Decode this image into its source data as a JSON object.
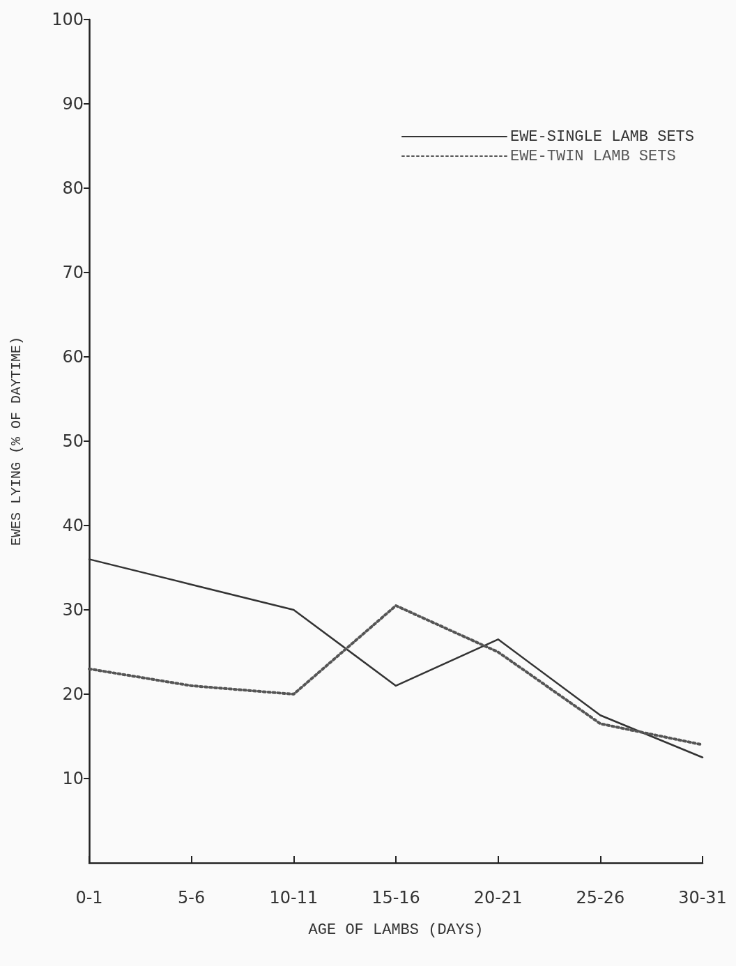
{
  "chart_data": {
    "type": "line",
    "xlabel": "AGE OF LAMBS (DAYS)",
    "ylabel": "EWES LYING (% OF DAYTIME)",
    "categories": [
      "0-1",
      "5-6",
      "10-11",
      "15-16",
      "20-21",
      "25-26",
      "30-31"
    ],
    "series": [
      {
        "name": "EWE-SINGLE LAMB SETS",
        "color": "#333333",
        "line_style": "solid",
        "values": [
          36,
          33,
          30,
          21,
          26.5,
          17.5,
          12.5
        ]
      },
      {
        "name": "EWE-TWIN LAMB SETS",
        "color": "#555555",
        "line_style": "dotted",
        "values": [
          23,
          21,
          20,
          30.5,
          25,
          16.5,
          14
        ]
      }
    ],
    "ylim": [
      0,
      100
    ],
    "yticks": [
      10,
      20,
      30,
      40,
      50,
      60,
      70,
      80,
      90,
      100
    ],
    "grid": false,
    "legend": "top right",
    "marker": "none"
  }
}
